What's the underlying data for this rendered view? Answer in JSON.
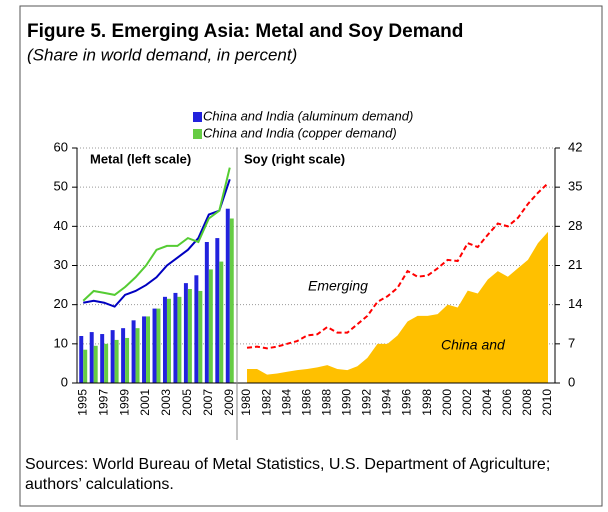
{
  "title": "Figure 5. Emerging Asia: Metal and Soy Demand",
  "subtitle": "(Share in world demand, in percent)",
  "sources": "Sources: World Bureau of Metal Statistics, U.S. Department of Agriculture; authors’ calculations.",
  "chart_data": [
    {
      "type": "bar",
      "panel_label": "Metal (left scale)",
      "categories": [
        1995,
        null,
        1997,
        null,
        1999,
        null,
        2001,
        null,
        2003,
        null,
        2005,
        null,
        2007,
        null,
        2009
      ],
      "series": [
        {
          "name": "China and India (aluminum demand)",
          "color": "#2222dd",
          "values": [
            12,
            13,
            12.5,
            13.5,
            14,
            16,
            17,
            19,
            22,
            23,
            25.5,
            27.5,
            36,
            37,
            44.5
          ]
        },
        {
          "name": "China and India (copper demand)",
          "color": "#66cc44",
          "values": [
            8.5,
            9.5,
            10,
            11,
            11.5,
            14,
            17,
            19,
            21.5,
            22,
            24,
            23.5,
            29,
            31,
            42
          ]
        },
        {
          "type": "line",
          "color": "#0000c0",
          "values": [
            20.5,
            21,
            20.5,
            19.5,
            22.5,
            23.5,
            25,
            27,
            30,
            32,
            34,
            37,
            43,
            44,
            52
          ]
        },
        {
          "type": "line",
          "color": "#55cc33",
          "values": [
            21,
            23.5,
            23,
            22.5,
            24.5,
            27,
            30,
            34,
            35,
            35,
            37,
            36,
            42,
            44,
            55
          ]
        }
      ],
      "ylim": [
        0,
        60
      ],
      "yticks": [
        0,
        10,
        20,
        30,
        40,
        50,
        60
      ],
      "grid": true
    },
    {
      "type": "line",
      "panel_label": "Soy (right scale)",
      "categories": [
        1980,
        null,
        1982,
        null,
        1984,
        null,
        1986,
        null,
        1988,
        null,
        1990,
        null,
        1992,
        null,
        1994,
        null,
        1996,
        null,
        1998,
        null,
        2000,
        null,
        2002,
        null,
        2004,
        null,
        2006,
        null,
        2008,
        null,
        2010
      ],
      "series": [
        {
          "name": "Emerging",
          "color": "#ff0000",
          "dashed": true,
          "axis": "y2",
          "values": [
            6.3,
            6.5,
            6.2,
            6.5,
            7,
            7.5,
            8.5,
            8.7,
            10,
            9,
            9,
            10.5,
            12,
            14.5,
            15.5,
            17,
            20,
            19,
            19.2,
            20.5,
            22,
            21.8,
            25,
            24.3,
            26.5,
            28.5,
            28,
            29.5,
            32,
            34,
            35.7
          ]
        },
        {
          "name": "China and",
          "type": "area",
          "color": "#ffc000",
          "axis": "y2",
          "values": [
            2.5,
            2.5,
            1.5,
            1.7,
            2,
            2.3,
            2.5,
            2.8,
            3.2,
            2.5,
            2.3,
            3,
            4.5,
            7,
            7,
            8.5,
            11,
            12,
            12,
            12.3,
            14,
            13.5,
            16.5,
            16,
            18.5,
            20,
            19,
            20.5,
            22,
            25,
            27
          ]
        }
      ],
      "y2lim": [
        0,
        42
      ],
      "y2ticks": [
        0,
        7,
        14,
        21,
        28,
        35,
        42
      ],
      "grid": true
    }
  ]
}
